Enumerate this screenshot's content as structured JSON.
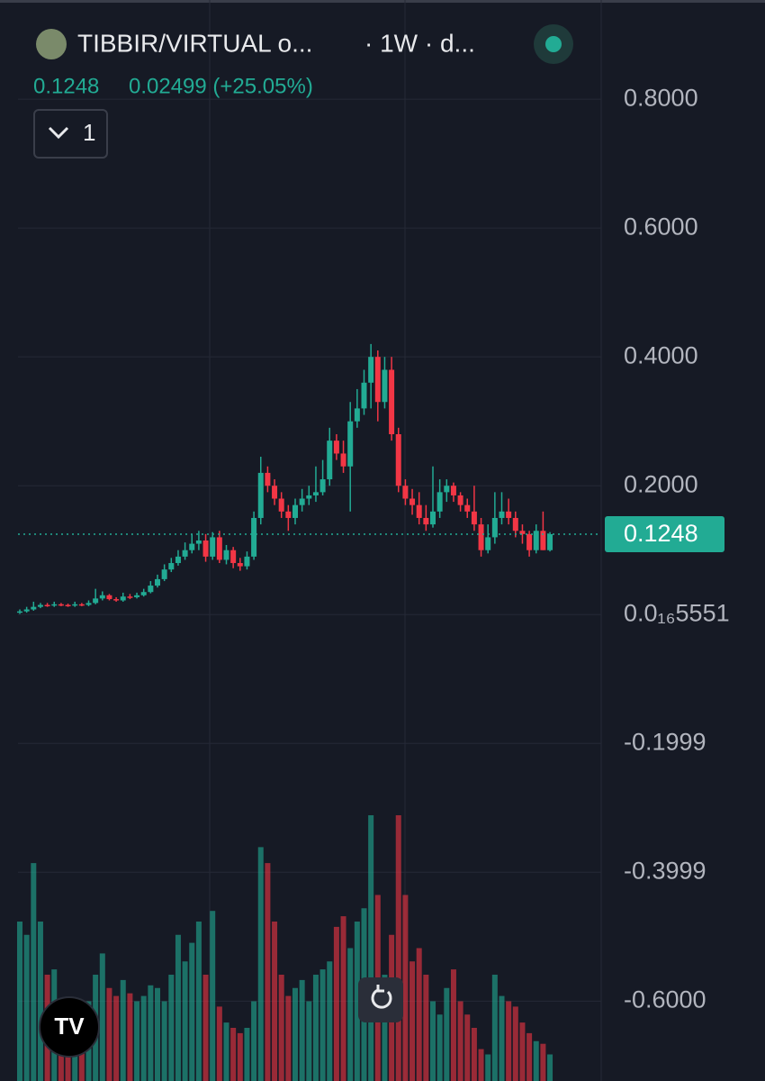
{
  "chart_data": {
    "type": "candlestick",
    "header": {
      "symbol": "TIBBIR/VIRTUAL o...",
      "interval": "· 1W · d...",
      "last": "0.1248",
      "change": "0.02499 (+25.05%)",
      "indicator_count": "1"
    },
    "price_label": "0.1248",
    "last_price": 0.1248,
    "ylim": [
      -0.724,
      0.954
    ],
    "yticks": [
      {
        "value": 0.8,
        "label": "0.8000"
      },
      {
        "value": 0.6,
        "label": "0.6000"
      },
      {
        "value": 0.4,
        "label": "0.4000"
      },
      {
        "value": 0.2,
        "label": "0.2000"
      },
      {
        "value": 5.551e-19,
        "label": "0.0₁₆5551"
      },
      {
        "value": -0.1999,
        "label": "-0.1999"
      },
      {
        "value": -0.3999,
        "label": "-0.3999"
      },
      {
        "value": -0.6,
        "label": "-0.6000"
      }
    ],
    "grid": true,
    "up_color": "#22ab94",
    "down_color": "#f23645",
    "open": [
      0.003,
      0.005,
      0.008,
      0.012,
      0.015,
      0.014,
      0.016,
      0.015,
      0.014,
      0.016,
      0.015,
      0.018,
      0.025,
      0.03,
      0.024,
      0.022,
      0.028,
      0.027,
      0.03,
      0.035,
      0.045,
      0.055,
      0.07,
      0.08,
      0.09,
      0.1,
      0.11,
      0.115,
      0.09,
      0.12,
      0.085,
      0.1,
      0.08,
      0.075,
      0.09,
      0.15,
      0.22,
      0.2,
      0.18,
      0.16,
      0.15,
      0.17,
      0.18,
      0.185,
      0.19,
      0.21,
      0.27,
      0.25,
      0.23,
      0.3,
      0.32,
      0.36,
      0.4,
      0.33,
      0.38,
      0.28,
      0.2,
      0.18,
      0.17,
      0.15,
      0.14,
      0.16,
      0.19,
      0.2,
      0.185,
      0.17,
      0.16,
      0.14,
      0.1,
      0.12,
      0.15,
      0.16,
      0.15,
      0.13,
      0.125,
      0.1,
      0.13,
      0.1
    ],
    "high": [
      0.008,
      0.012,
      0.02,
      0.018,
      0.018,
      0.02,
      0.018,
      0.017,
      0.02,
      0.018,
      0.022,
      0.04,
      0.036,
      0.032,
      0.027,
      0.034,
      0.032,
      0.034,
      0.04,
      0.052,
      0.062,
      0.078,
      0.088,
      0.1,
      0.112,
      0.125,
      0.13,
      0.125,
      0.128,
      0.13,
      0.108,
      0.105,
      0.088,
      0.098,
      0.16,
      0.245,
      0.23,
      0.21,
      0.19,
      0.17,
      0.18,
      0.195,
      0.2,
      0.23,
      0.24,
      0.29,
      0.28,
      0.27,
      0.33,
      0.35,
      0.38,
      0.42,
      0.41,
      0.4,
      0.4,
      0.29,
      0.21,
      0.195,
      0.19,
      0.17,
      0.23,
      0.21,
      0.21,
      0.205,
      0.19,
      0.18,
      0.2,
      0.15,
      0.14,
      0.19,
      0.19,
      0.18,
      0.16,
      0.14,
      0.13,
      0.14,
      0.16,
      0.128
    ],
    "low": [
      0.001,
      0.003,
      0.006,
      0.01,
      0.012,
      0.012,
      0.013,
      0.012,
      0.012,
      0.013,
      0.013,
      0.016,
      0.022,
      0.022,
      0.02,
      0.02,
      0.024,
      0.025,
      0.028,
      0.033,
      0.042,
      0.052,
      0.066,
      0.076,
      0.085,
      0.095,
      0.1,
      0.082,
      0.085,
      0.08,
      0.078,
      0.072,
      0.068,
      0.07,
      0.085,
      0.14,
      0.19,
      0.17,
      0.15,
      0.13,
      0.14,
      0.16,
      0.17,
      0.175,
      0.185,
      0.2,
      0.24,
      0.22,
      0.16,
      0.29,
      0.31,
      0.32,
      0.3,
      0.32,
      0.27,
      0.19,
      0.17,
      0.155,
      0.14,
      0.13,
      0.135,
      0.15,
      0.175,
      0.175,
      0.16,
      0.15,
      0.13,
      0.09,
      0.095,
      0.11,
      0.14,
      0.14,
      0.12,
      0.11,
      0.09,
      0.095,
      0.1,
      0.098
    ],
    "close": [
      0.005,
      0.008,
      0.012,
      0.015,
      0.014,
      0.016,
      0.015,
      0.014,
      0.016,
      0.015,
      0.018,
      0.025,
      0.03,
      0.024,
      0.022,
      0.028,
      0.027,
      0.03,
      0.035,
      0.045,
      0.055,
      0.07,
      0.08,
      0.09,
      0.1,
      0.11,
      0.115,
      0.09,
      0.12,
      0.085,
      0.1,
      0.08,
      0.075,
      0.09,
      0.15,
      0.22,
      0.2,
      0.18,
      0.16,
      0.15,
      0.17,
      0.18,
      0.185,
      0.19,
      0.21,
      0.27,
      0.25,
      0.23,
      0.3,
      0.32,
      0.36,
      0.4,
      0.33,
      0.38,
      0.28,
      0.2,
      0.18,
      0.17,
      0.15,
      0.14,
      0.16,
      0.19,
      0.2,
      0.185,
      0.17,
      0.16,
      0.14,
      0.1,
      0.12,
      0.15,
      0.16,
      0.15,
      0.13,
      0.125,
      0.1,
      0.13,
      0.1,
      0.1248
    ],
    "volume": [
      60,
      55,
      82,
      60,
      40,
      42,
      30,
      25,
      20,
      22,
      30,
      40,
      48,
      35,
      32,
      38,
      33,
      30,
      32,
      36,
      35,
      30,
      40,
      55,
      45,
      52,
      60,
      40,
      64,
      28,
      22,
      20,
      18,
      20,
      30,
      88,
      82,
      60,
      40,
      32,
      35,
      38,
      30,
      40,
      42,
      45,
      58,
      62,
      50,
      60,
      65,
      100,
      70,
      40,
      55,
      100,
      70,
      45,
      50,
      40,
      30,
      25,
      35,
      42,
      30,
      25,
      20,
      12,
      10,
      40,
      32,
      30,
      28,
      22,
      18,
      15,
      14,
      10
    ]
  }
}
